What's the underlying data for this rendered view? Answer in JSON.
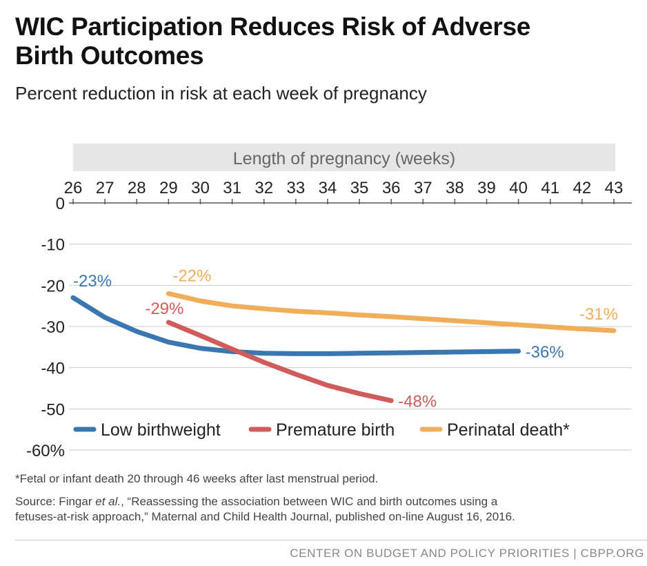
{
  "title_line1": "WIC Participation Reduces Risk of Adverse",
  "title_line2": "Birth Outcomes",
  "chart_data": {
    "type": "line",
    "title": "WIC Participation Reduces Risk of Adverse Birth Outcomes",
    "subtitle": "Percent reduction in risk at each week of pregnancy",
    "xlabel": "Length of pregnancy (weeks)",
    "x_ticks": [
      26,
      27,
      28,
      29,
      30,
      31,
      32,
      33,
      34,
      35,
      36,
      37,
      38,
      39,
      40,
      41,
      42,
      43
    ],
    "xlim": [
      26,
      43
    ],
    "y_ticks": [
      0,
      -10,
      -20,
      -30,
      -40,
      -50,
      -60
    ],
    "y_tick_labels": [
      "0",
      "-10",
      "-20",
      "-30",
      "-40",
      "-50",
      "-60%"
    ],
    "ylim": [
      -60,
      0
    ],
    "x_axis_position": "top",
    "grid": true,
    "legend_position": "bottom-left",
    "series": [
      {
        "name": "Low birthweight",
        "color": "#3a77b0",
        "x": [
          26,
          27,
          28,
          29,
          30,
          31,
          32,
          33,
          34,
          35,
          36,
          37,
          38,
          39,
          40
        ],
        "values": [
          -23,
          -27.8,
          -31.2,
          -33.8,
          -35.3,
          -36.1,
          -36.5,
          -36.6,
          -36.6,
          -36.5,
          -36.4,
          -36.3,
          -36.2,
          -36.1,
          -36
        ],
        "start_label": "-23%",
        "end_label": "-36%"
      },
      {
        "name": "Premature birth",
        "color": "#d05b5b",
        "x": [
          29,
          30,
          31,
          32,
          33,
          34,
          35,
          36
        ],
        "values": [
          -29,
          -32.2,
          -35.5,
          -38.7,
          -41.6,
          -44.3,
          -46.3,
          -48
        ],
        "start_label": "-29%",
        "end_label": "-48%"
      },
      {
        "name": "Perinatal death*",
        "color": "#f0ad5a",
        "x": [
          29,
          30,
          31,
          32,
          33,
          34,
          35,
          36,
          37,
          38,
          39,
          40,
          41,
          42,
          43
        ],
        "values": [
          -22,
          -23.8,
          -25,
          -25.7,
          -26.3,
          -26.7,
          -27.2,
          -27.6,
          -28.1,
          -28.6,
          -29.1,
          -29.6,
          -30.1,
          -30.6,
          -31
        ],
        "start_label": "-22%",
        "end_label": "-31%"
      }
    ]
  },
  "footnote": "*Fetal or infant death 20 through 46 weeks after last menstrual period.",
  "source_line1": "Source:  Fingar et al., “Reassessing the association between WIC and birth outcomes using a",
  "source_line2": "fetuses-at-risk approach,” Maternal and Child Health Journal, published on-line August 16, 2016.",
  "credit": "CENTER ON BUDGET AND POLICY PRIORITIES | CBPP.ORG"
}
